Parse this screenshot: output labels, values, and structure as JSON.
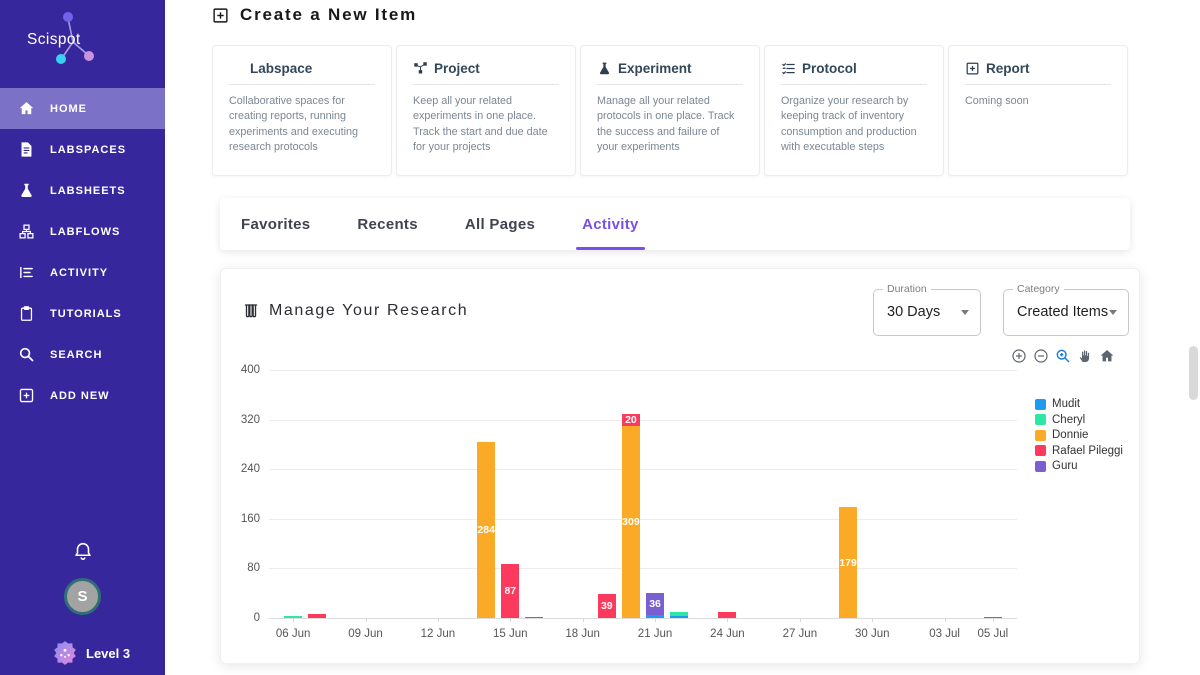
{
  "app": {
    "brand": "Scispot"
  },
  "colors": {
    "sidebar_bg": "#36289c",
    "sidebar_active_bg": "#7b72c7",
    "accent": "#7a4fe8",
    "card_title": "#33475b",
    "labspace_icon": "#7b5cf0"
  },
  "sidebar": {
    "items": [
      {
        "label": "HOME",
        "icon": "home-icon",
        "active": true
      },
      {
        "label": "LABSPACES",
        "icon": "labspaces-doc-icon",
        "active": false
      },
      {
        "label": "LABSHEETS",
        "icon": "flask-icon",
        "active": false
      },
      {
        "label": "LABFLOWS",
        "icon": "labflows-icon",
        "active": false
      },
      {
        "label": "ACTIVITY",
        "icon": "activity-icon",
        "active": false
      },
      {
        "label": "TUTORIALS",
        "icon": "tutorials-icon",
        "active": false
      },
      {
        "label": "SEARCH",
        "icon": "search-icon",
        "active": false
      },
      {
        "label": "ADD NEW",
        "icon": "add-new-icon",
        "active": false
      }
    ],
    "avatar_letter": "S",
    "level_label": "Level 3"
  },
  "header": {
    "title": "Create a New Item",
    "icon": "plus-square-icon"
  },
  "create_cards": [
    {
      "title": "Labspace",
      "icon": "labspace-doc-icon",
      "icon_color": "#7b5cf0",
      "description": "Collaborative spaces for creating reports, running experiments and executing research protocols"
    },
    {
      "title": "Project",
      "icon": "project-network-icon",
      "icon_color": "#2f3f52",
      "description": "Keep all your related experiments in one place. Track the start and due date for your projects"
    },
    {
      "title": "Experiment",
      "icon": "experiment-flask-icon",
      "icon_color": "#2f3f52",
      "description": "Manage all your related protocols in one place. Track the success and failure of your experiments"
    },
    {
      "title": "Protocol",
      "icon": "protocol-checklist-icon",
      "icon_color": "#2f3f52",
      "description": "Organize your research by keeping track of inventory consumption and production with executable steps"
    },
    {
      "title": "Report",
      "icon": "report-plus-icon",
      "icon_color": "#2f3f52",
      "description": "Coming soon"
    }
  ],
  "tabs": [
    {
      "label": "Favorites",
      "active": false
    },
    {
      "label": "Recents",
      "active": false
    },
    {
      "label": "All Pages",
      "active": false
    },
    {
      "label": "Activity",
      "active": true
    }
  ],
  "panel": {
    "title": "Manage Your Research",
    "icon": "test-tubes-icon",
    "duration": {
      "label": "Duration",
      "value": "30 Days"
    },
    "category": {
      "label": "Category",
      "value": "Created Items"
    },
    "toolbar": [
      {
        "icon": "zoom-in-icon",
        "active": false
      },
      {
        "icon": "zoom-out-icon",
        "active": false
      },
      {
        "icon": "box-zoom-icon",
        "active": true
      },
      {
        "icon": "pan-hand-icon",
        "active": false
      },
      {
        "icon": "reset-home-icon",
        "active": false
      }
    ]
  },
  "chart_data": {
    "type": "bar",
    "stacked": true,
    "title": "Manage Your Research",
    "xlabel": "",
    "ylabel": "",
    "ylim": [
      0,
      400
    ],
    "yticks": [
      0,
      80,
      160,
      240,
      320,
      400
    ],
    "x_domain_days": [
      -1,
      30
    ],
    "grid": true,
    "legend_position": "right",
    "legend": [
      "Mudit",
      "Cheryl",
      "Donnie",
      "Rafael Pileggi",
      "Guru"
    ],
    "series_colors": {
      "Mudit": "#1e9bf0",
      "Cheryl": "#2fe6a7",
      "Donnie": "#fbaa28",
      "Rafael Pileggi": "#fb3a5d",
      "Guru": "#7a5fd0"
    },
    "xticks": [
      {
        "day": 0,
        "label": "06 Jun"
      },
      {
        "day": 3,
        "label": "09 Jun"
      },
      {
        "day": 6,
        "label": "12 Jun"
      },
      {
        "day": 9,
        "label": "15 Jun"
      },
      {
        "day": 12,
        "label": "18 Jun"
      },
      {
        "day": 15,
        "label": "21 Jun"
      },
      {
        "day": 18,
        "label": "24 Jun"
      },
      {
        "day": 21,
        "label": "27 Jun"
      },
      {
        "day": 24,
        "label": "30 Jun"
      },
      {
        "day": 27,
        "label": "03 Jul"
      },
      {
        "day": 29,
        "label": "05 Jul"
      }
    ],
    "bars": [
      {
        "day": 0,
        "date": "06 Jun",
        "segments": [
          {
            "series": "Cheryl",
            "value": 3
          }
        ]
      },
      {
        "day": 1,
        "date": "07 Jun",
        "segments": [
          {
            "series": "Rafael Pileggi",
            "value": 6
          }
        ]
      },
      {
        "day": 8,
        "date": "14 Jun",
        "segments": [
          {
            "series": "Donnie",
            "value": 284,
            "label": "284"
          }
        ]
      },
      {
        "day": 9,
        "date": "15 Jun",
        "segments": [
          {
            "series": "Rafael Pileggi",
            "value": 87,
            "label": "87"
          }
        ]
      },
      {
        "day": 10,
        "date": "16 Jun",
        "segments": [
          {
            "series": "Rafael Pileggi",
            "value": 2
          }
        ]
      },
      {
        "day": 13,
        "date": "19 Jun",
        "segments": [
          {
            "series": "Rafael Pileggi",
            "value": 39,
            "label": "39"
          }
        ]
      },
      {
        "day": 14,
        "date": "20 Jun",
        "segments": [
          {
            "series": "Donnie",
            "value": 309,
            "label": "309"
          },
          {
            "series": "Rafael Pileggi",
            "value": 20,
            "label": "20"
          }
        ]
      },
      {
        "day": 15,
        "date": "21 Jun",
        "segments": [
          {
            "series": "Mudit",
            "value": 5
          },
          {
            "series": "Guru",
            "value": 36,
            "label": "36"
          }
        ]
      },
      {
        "day": 16,
        "date": "22 Jun",
        "segments": [
          {
            "series": "Mudit",
            "value": 3
          },
          {
            "series": "Cheryl",
            "value": 6
          }
        ]
      },
      {
        "day": 18,
        "date": "24 Jun",
        "segments": [
          {
            "series": "Rafael Pileggi",
            "value": 10
          }
        ]
      },
      {
        "day": 23,
        "date": "29 Jun",
        "segments": [
          {
            "series": "Donnie",
            "value": 179,
            "label": "179"
          }
        ]
      },
      {
        "day": 29,
        "date": "05 Jul",
        "segments": [
          {
            "series": "Rafael Pileggi",
            "value": 2
          }
        ]
      }
    ]
  }
}
